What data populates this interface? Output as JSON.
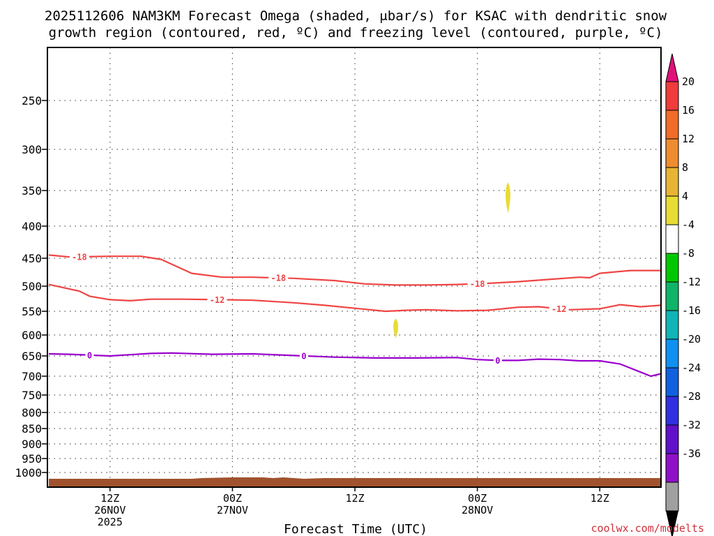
{
  "chart_data": {
    "type": "line",
    "title_lines": [
      "2025112606 NAM3KM Forecast Omega (shaded, μbar/s) for KSAC with dendritic snow",
      "growth region (contoured, red, ºC) and freezing level (contoured, purple, ºC)"
    ],
    "xlabel": "Forecast Time (UTC)",
    "credit": "coolwx.com/modelts",
    "x_range_hours": [
      0,
      60
    ],
    "x_ticks": [
      {
        "hour": 6,
        "lines": [
          "12Z",
          "26NOV",
          "2025"
        ]
      },
      {
        "hour": 18,
        "lines": [
          "00Z",
          "27NOV"
        ]
      },
      {
        "hour": 30,
        "lines": [
          "12Z"
        ]
      },
      {
        "hour": 42,
        "lines": [
          "00Z",
          "28NOV"
        ]
      },
      {
        "hour": 54,
        "lines": [
          "12Z"
        ]
      }
    ],
    "y_range_hpa": [
      1020,
      200
    ],
    "y_ticks": [
      250,
      300,
      350,
      400,
      450,
      500,
      550,
      600,
      650,
      700,
      750,
      800,
      850,
      900,
      950,
      1000
    ],
    "series": [
      {
        "name": "-18",
        "label": "-18",
        "color": "#ef4444",
        "label_hours": [
          3,
          22.5,
          42
        ],
        "x": [
          0,
          2,
          6,
          9,
          11,
          14,
          17,
          20,
          24,
          28,
          31,
          34,
          37,
          40,
          43,
          46,
          49,
          52,
          53,
          54,
          57,
          60
        ],
        "y": [
          445,
          448,
          447,
          447,
          452,
          477,
          484,
          484,
          486,
          490,
          496,
          498,
          498,
          497,
          495,
          492,
          488,
          484,
          485,
          477,
          472,
          472
        ]
      },
      {
        "name": "-12",
        "label": "-12",
        "color": "#ef4444",
        "label_hours": [
          16.5,
          50
        ],
        "x": [
          0,
          3,
          4,
          6,
          8,
          10,
          13,
          17,
          20,
          24,
          27,
          30,
          33,
          35,
          37,
          40,
          43,
          46,
          48,
          51,
          54,
          56,
          58,
          60
        ],
        "y": [
          497,
          510,
          520,
          527,
          529,
          526,
          526,
          527,
          528,
          533,
          538,
          544,
          550,
          548,
          547,
          549,
          548,
          542,
          541,
          547,
          545,
          537,
          541,
          538
        ]
      },
      {
        "name": "0",
        "label": "0",
        "color": "#9900cc",
        "label_hours": [
          4,
          25,
          44
        ],
        "x": [
          0,
          2,
          4,
          6,
          8,
          10,
          12,
          16,
          20,
          24,
          28,
          32,
          36,
          40,
          42,
          44,
          46,
          48,
          50,
          52,
          54,
          56,
          58,
          59,
          60
        ],
        "y": [
          645,
          646,
          648,
          650,
          647,
          644,
          643,
          646,
          645,
          649,
          653,
          655,
          655,
          654,
          659,
          661,
          661,
          658,
          659,
          662,
          662,
          670,
          690,
          700,
          694
        ]
      }
    ],
    "shaded_blobs": [
      {
        "hour": 45,
        "hpa_top": 340,
        "hpa_bottom": 382,
        "value_range": "4 to 8"
      },
      {
        "hour": 34,
        "hpa_top": 565,
        "hpa_bottom": 608,
        "value_range": "4 to 8"
      }
    ],
    "colorbar": {
      "label_values": [
        "20",
        "16",
        "12",
        "8",
        "4",
        "-4",
        "-8",
        "-12",
        "-16",
        "-20",
        "-24",
        "-28",
        "-32",
        "-36"
      ],
      "colors": [
        "#f03c3c",
        "#f06c28",
        "#f08c30",
        "#e8b434",
        "#e8dc34",
        "#ffffff",
        "#00c800",
        "#10b468",
        "#10b4b4",
        "#1090f0",
        "#1060e0",
        "#3030e0",
        "#6010c8",
        "#9010c8",
        "#a0a0a0"
      ],
      "top_arrow_color": "#e0107a",
      "bottom_arrow_color": "#000000"
    },
    "grid": true,
    "ground_color": "#a0522d"
  }
}
